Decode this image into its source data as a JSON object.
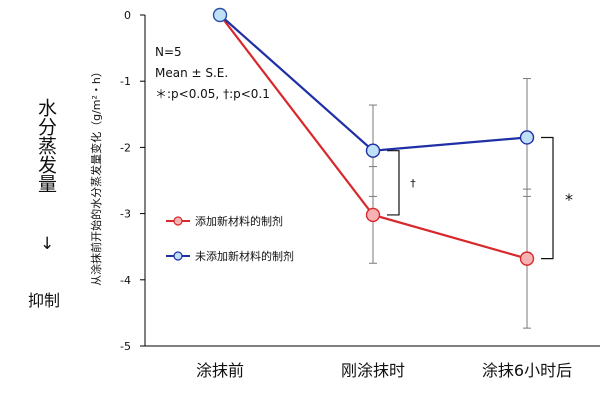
{
  "side": {
    "vertical_word": "水分蒸发量",
    "arrow": "↓",
    "suppress": "抑制"
  },
  "stats_text": {
    "n": "N=5",
    "mean": "Mean ± S.E.",
    "sig": "＊:p<0.05, †:p<0.1"
  },
  "brackets": {
    "dagger": "†",
    "star": "*"
  },
  "colors": {
    "red": "#d8282b",
    "blue": "#1f2fa6",
    "red_fill": "#f7b3b3",
    "blue_fill": "#bfe0f6",
    "error": "#7a7a7a",
    "axis": "#000000"
  },
  "chart_data": {
    "type": "line",
    "title": "",
    "ylabel": "从涂抹前开始的水分蒸发量变化（g/m²・h）",
    "xlabel": "",
    "categories": [
      "涂抹前",
      "刚涂抹时",
      "涂抹6小时后"
    ],
    "ylim": [
      -5,
      0
    ],
    "yticks": [
      "0",
      "-1",
      "-2",
      "-3",
      "-4",
      "-5"
    ],
    "legend_position": "middle-left",
    "series": [
      {
        "name": "添加新材料的制剂",
        "color": "red",
        "values": [
          0,
          -3.02,
          -3.68
        ],
        "errors": [
          0,
          0.73,
          1.05
        ]
      },
      {
        "name": "未添加新材料的制剂",
        "color": "blue",
        "values": [
          0,
          -2.05,
          -1.85
        ],
        "errors": [
          0,
          0.69,
          0.89
        ]
      }
    ]
  }
}
